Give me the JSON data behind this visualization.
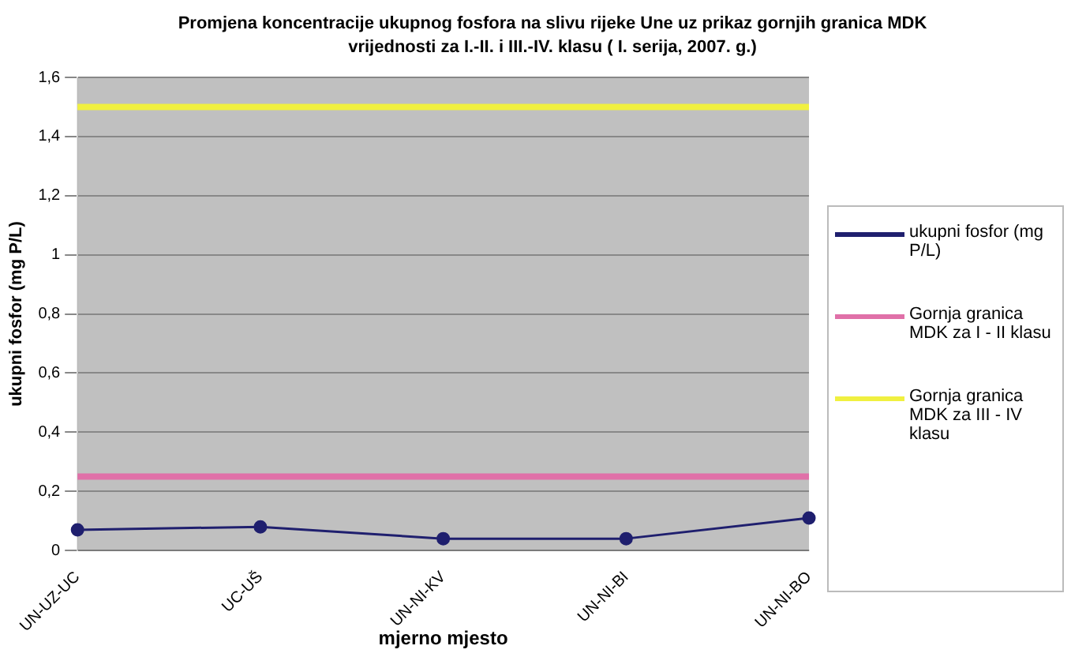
{
  "chart_data": {
    "type": "line",
    "title": "Promjena koncentracije ukupnog fosfora na slivu rijeke Une uz prikaz gornjih granica MDK vrijednosti za I.-II. i III.-IV. klasu ( I. serija, 2007. g.)",
    "xlabel": "mjerno mjesto",
    "ylabel": "ukupni fosfor (mg P/L)",
    "categories": [
      "UN-UZ-UC",
      "UC-UŠ",
      "UN-NI-KV",
      "UN-NI-BI",
      "UN-NI-BO"
    ],
    "series": [
      {
        "name": "ukupni fosfor (mg P/L)",
        "color": "#1f1f6e",
        "marker": "circle",
        "values": [
          0.07,
          0.08,
          0.04,
          0.04,
          0.11
        ]
      },
      {
        "name": "Gornja granica MDK za I - II klasu",
        "color": "#e070a8",
        "marker": "none",
        "values": [
          0.25,
          0.25,
          0.25,
          0.25,
          0.25
        ]
      },
      {
        "name": "Gornja granica MDK za III - IV klasu",
        "color": "#f0f040",
        "marker": "none",
        "values": [
          1.5,
          1.5,
          1.5,
          1.5,
          1.5
        ]
      }
    ],
    "ylim": [
      0,
      1.6
    ],
    "yticks": [
      0,
      {
        "value": 0.2,
        "label": "0,2"
      },
      {
        "value": 0.4,
        "label": "0,4"
      },
      {
        "value": 0.6,
        "label": "0,6"
      },
      {
        "value": 0.8,
        "label": "0,8"
      },
      1,
      {
        "value": 1.2,
        "label": "1,2"
      },
      {
        "value": 1.4,
        "label": "1,4"
      },
      {
        "value": 1.6,
        "label": "1,6"
      }
    ],
    "grid": "y",
    "legend": "right"
  }
}
